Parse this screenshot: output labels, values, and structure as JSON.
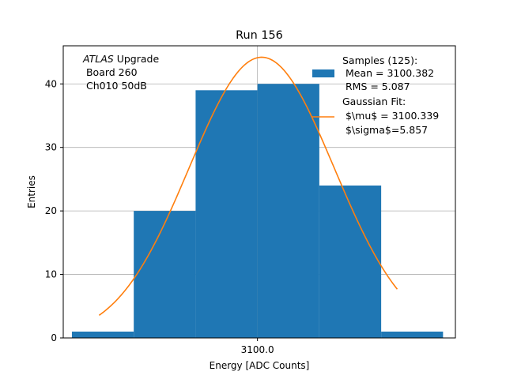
{
  "chart_data": {
    "type": "bar",
    "title": "Run 156",
    "xlabel": "Energy [ADC Counts]",
    "ylabel": "Entries",
    "x_tick_labels": [
      {
        "value": 3100,
        "label": "3100.0"
      }
    ],
    "y_ticks": [
      0,
      10,
      20,
      30,
      40
    ],
    "xlim": [
      3084.3,
      3116.0
    ],
    "ylim": [
      0,
      46
    ],
    "grid": true,
    "bin_edges": [
      3085.0,
      3090.0,
      3095.0,
      3100.0,
      3105.0,
      3110.0,
      3115.0
    ],
    "values": [
      1,
      20,
      39,
      40,
      24,
      1
    ],
    "annotation": {
      "lines": [
        {
          "prefix": "ATLAS",
          "prefix_italic": true,
          "text": " Upgrade"
        },
        {
          "text": " Board 260"
        },
        {
          "text": " Ch010 50dB"
        }
      ]
    },
    "series": [
      {
        "type": "histogram",
        "color": "#1f77b4",
        "legend_lines": [
          "Samples (125):",
          " Mean = 3100.382",
          " RMS = 5.087"
        ]
      },
      {
        "type": "line",
        "color": "#ff7f0e",
        "legend_lines": [
          "Gaussian Fit:",
          " $\\mu$ = 3100.339",
          " $\\sigma$=5.857"
        ],
        "mu": 3100.339,
        "sigma": 5.857,
        "amplitude": 44.2,
        "x_range": [
          3087.2,
          3111.3
        ]
      }
    ],
    "legend_placement": "upper-right"
  }
}
